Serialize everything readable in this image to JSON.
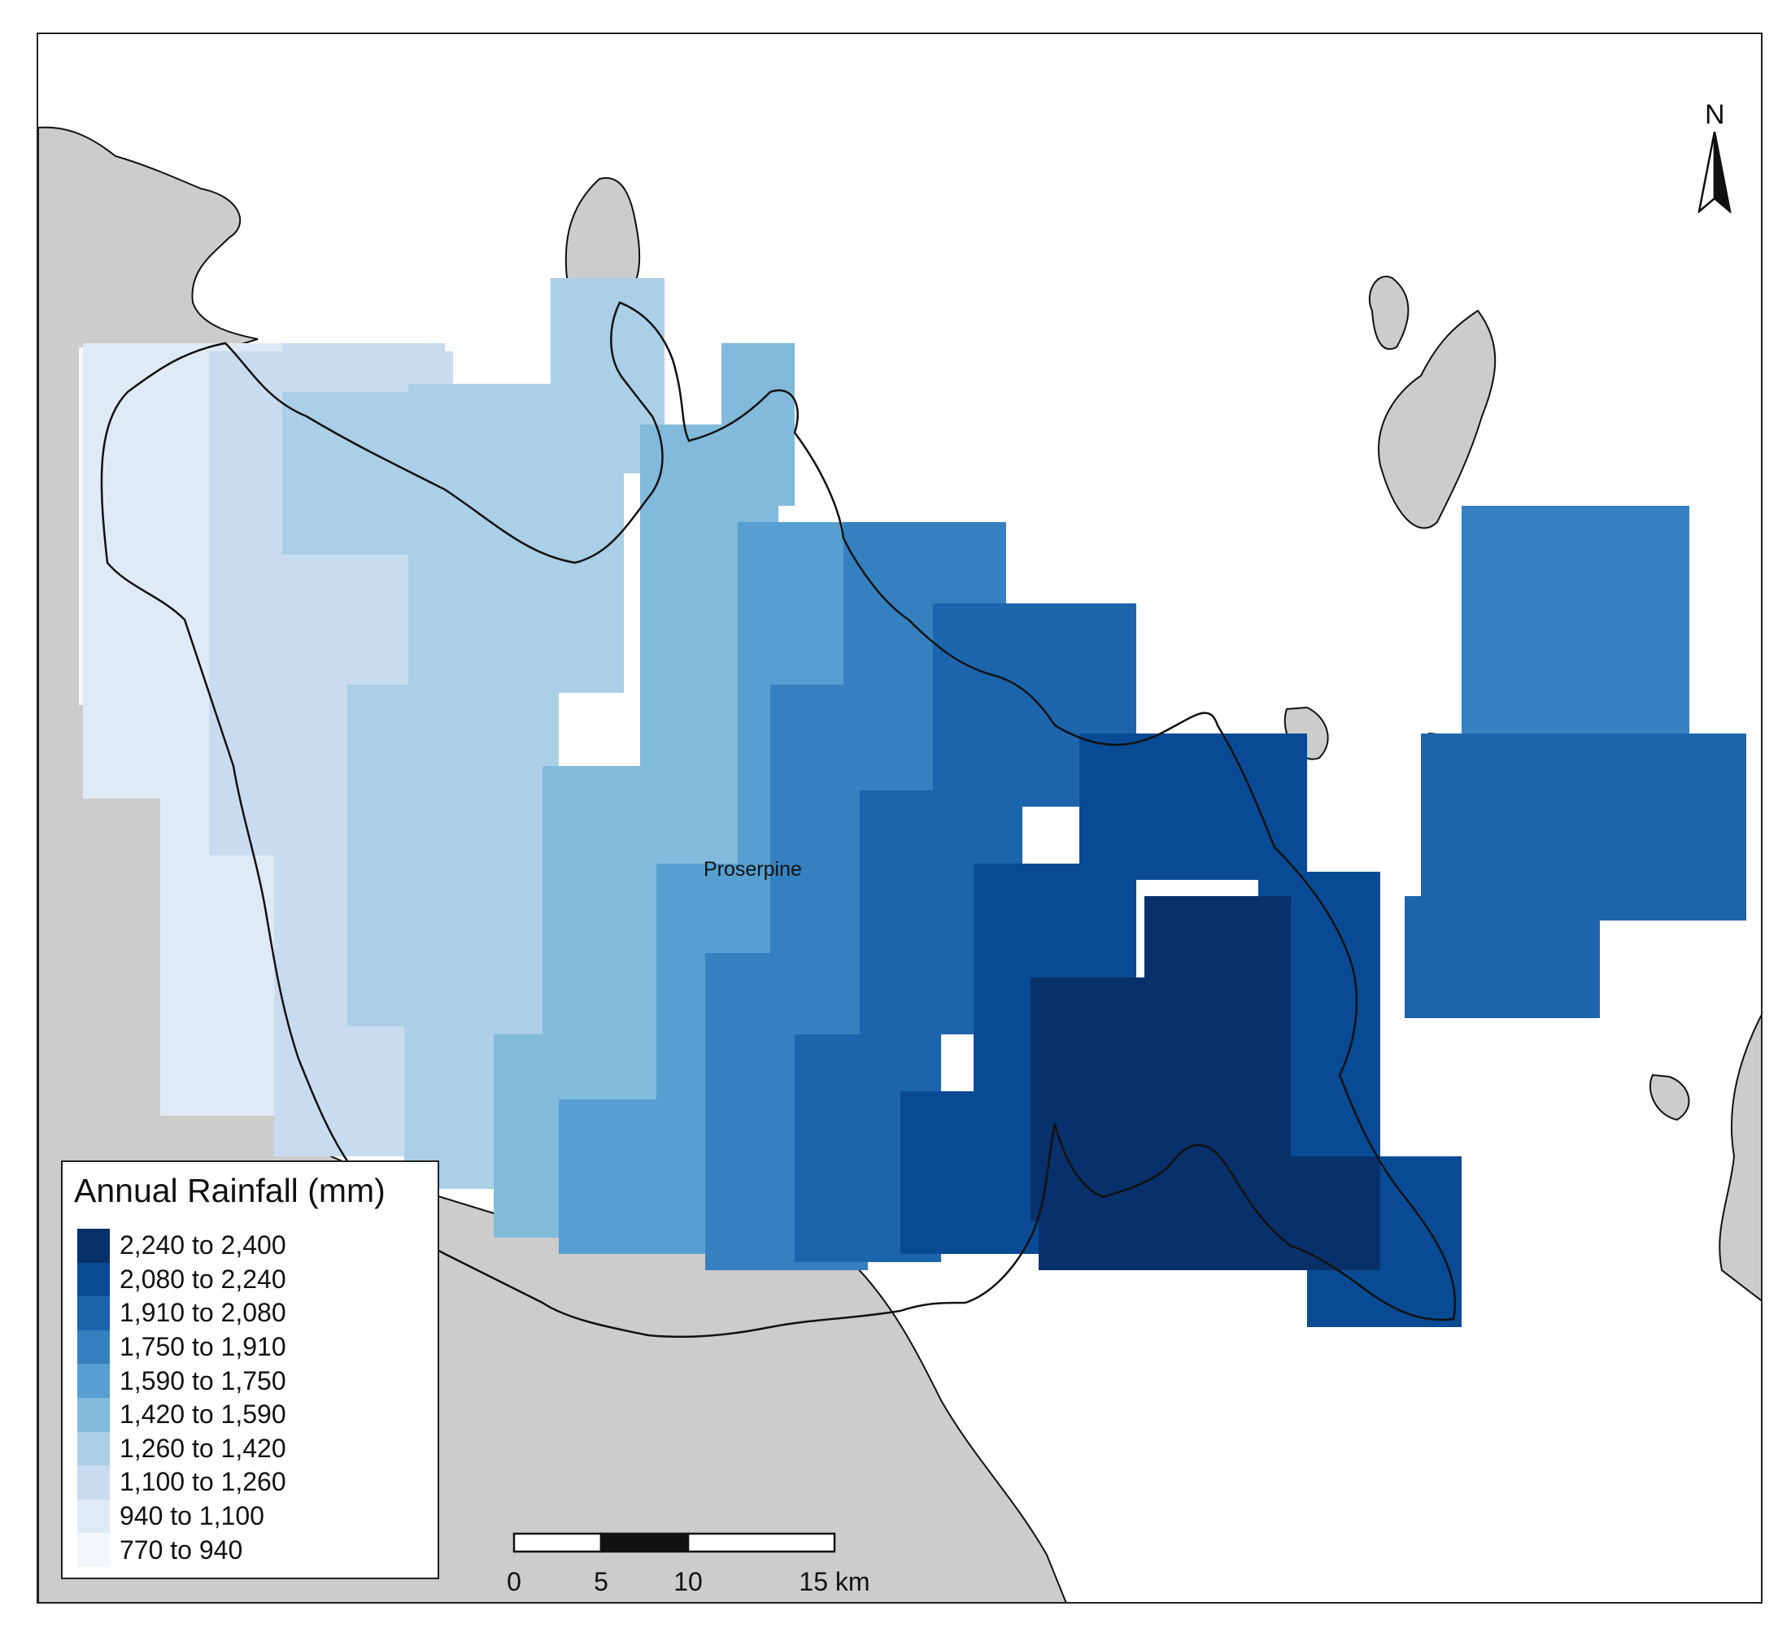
{
  "legend": {
    "title": "Annual Rainfall (mm)",
    "classes": [
      {
        "label": "2,240 to 2,400",
        "color": "#08306b"
      },
      {
        "label": "2,080 to 2,240",
        "color": "#084b94"
      },
      {
        "label": "1,910 to 2,080",
        "color": "#1c65ad"
      },
      {
        "label": "1,750 to 1,910",
        "color": "#3581c0"
      },
      {
        "label": "1,590 to 1,750",
        "color": "#569fd0"
      },
      {
        "label": "1,420 to 1,590",
        "color": "#82badb"
      },
      {
        "label": "1,260 to 1,420",
        "color": "#aacfe6"
      },
      {
        "label": "1,100 to 1,260",
        "color": "#c9dcef"
      },
      {
        "label": "940 to 1,100",
        "color": "#deebf7"
      },
      {
        "label": "770 to 940",
        "color": "#f3f8fd"
      }
    ]
  },
  "place_label": "Proserpine",
  "north_arrow": {
    "label": "N"
  },
  "scale_bar": {
    "ticks": [
      "0",
      "5",
      "10",
      "15 km"
    ]
  },
  "colors": {
    "land": "#cccccc",
    "water": "#ffffff",
    "coastline": "#111111"
  }
}
